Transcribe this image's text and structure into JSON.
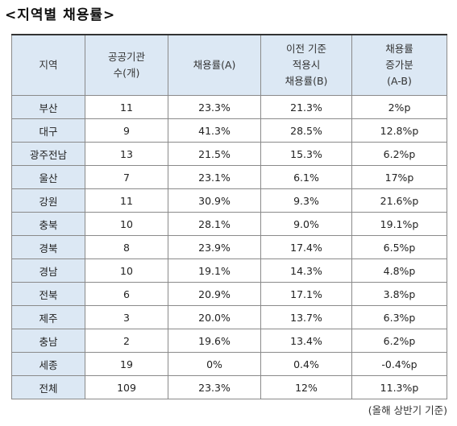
{
  "title": "<지역별 채용률>",
  "table": {
    "headers": [
      [
        "지역"
      ],
      [
        "공공기관",
        "수(개)"
      ],
      [
        "채용률(A)"
      ],
      [
        "이전 기준",
        "적용시",
        "채용률(B)"
      ],
      [
        "채용률",
        "증가분",
        "(A-B)"
      ]
    ],
    "rows": [
      [
        "부산",
        "11",
        "23.3%",
        "21.3%",
        "2%p"
      ],
      [
        "대구",
        "9",
        "41.3%",
        "28.5%",
        "12.8%p"
      ],
      [
        "광주전남",
        "13",
        "21.5%",
        "15.3%",
        "6.2%p"
      ],
      [
        "울산",
        "7",
        "23.1%",
        "6.1%",
        "17%p"
      ],
      [
        "강원",
        "11",
        "30.9%",
        "9.3%",
        "21.6%p"
      ],
      [
        "충북",
        "10",
        "28.1%",
        "9.0%",
        "19.1%p"
      ],
      [
        "경북",
        "8",
        "23.9%",
        "17.4%",
        "6.5%p"
      ],
      [
        "경남",
        "10",
        "19.1%",
        "14.3%",
        "4.8%p"
      ],
      [
        "전북",
        "6",
        "20.9%",
        "17.1%",
        "3.8%p"
      ],
      [
        "제주",
        "3",
        "20.0%",
        "13.7%",
        "6.3%p"
      ],
      [
        "충남",
        "2",
        "19.6%",
        "13.4%",
        "6.2%p"
      ],
      [
        "세종",
        "19",
        "0%",
        "0.4%",
        "-0.4%p"
      ],
      [
        "전체",
        "109",
        "23.3%",
        "12%",
        "11.3%p"
      ]
    ]
  },
  "footnote": "(올해 상반기 기준)",
  "colors": {
    "header_bg": "#dce8f4",
    "border": "#8a8a8a"
  }
}
